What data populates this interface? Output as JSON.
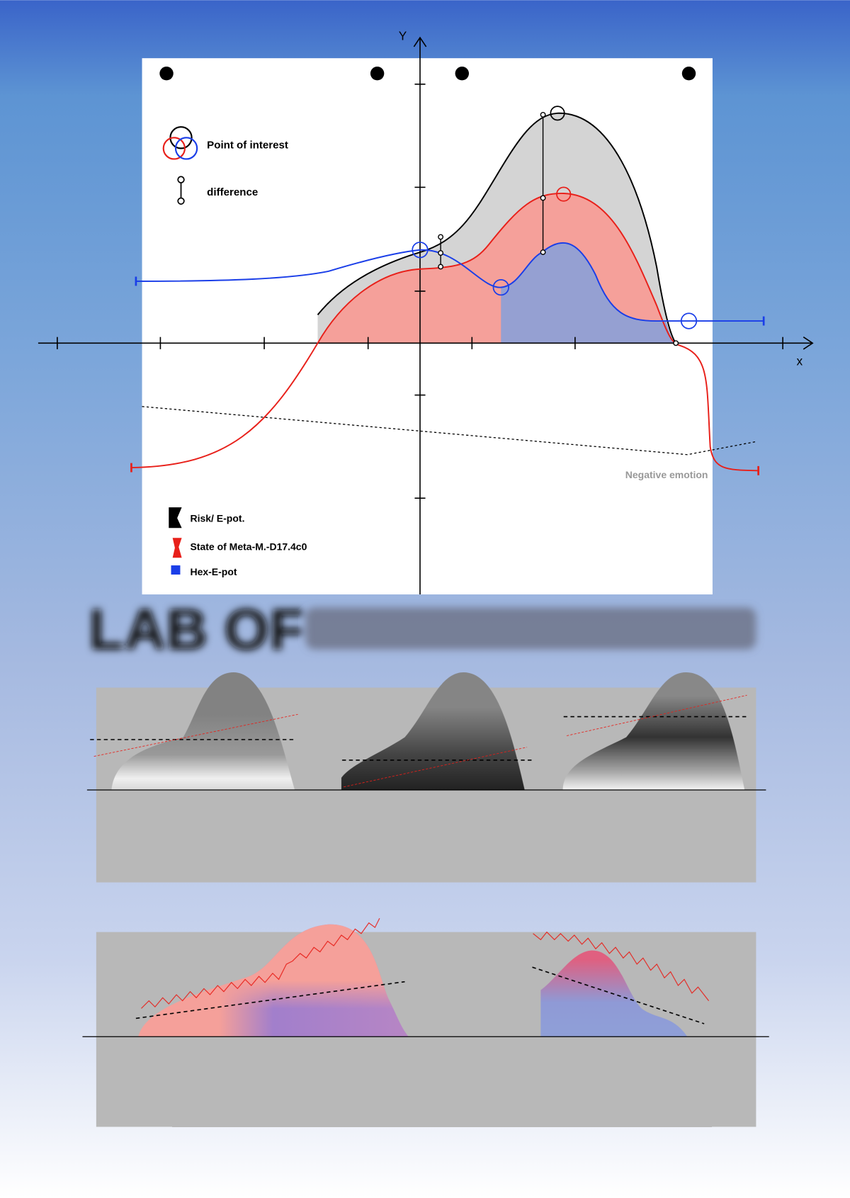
{
  "axes": {
    "y_label": "Y",
    "x_label": "x"
  },
  "legend_top": {
    "point_of_interest": "Point of interest",
    "difference": "difference"
  },
  "annotation": "Negative emotion",
  "legend_bottom": {
    "risk": "Risk/ E-pot.",
    "state": "State of Meta-M.-D17.4c0",
    "hex": "Hex-E-pot"
  },
  "headline": "LAB OF"
}
